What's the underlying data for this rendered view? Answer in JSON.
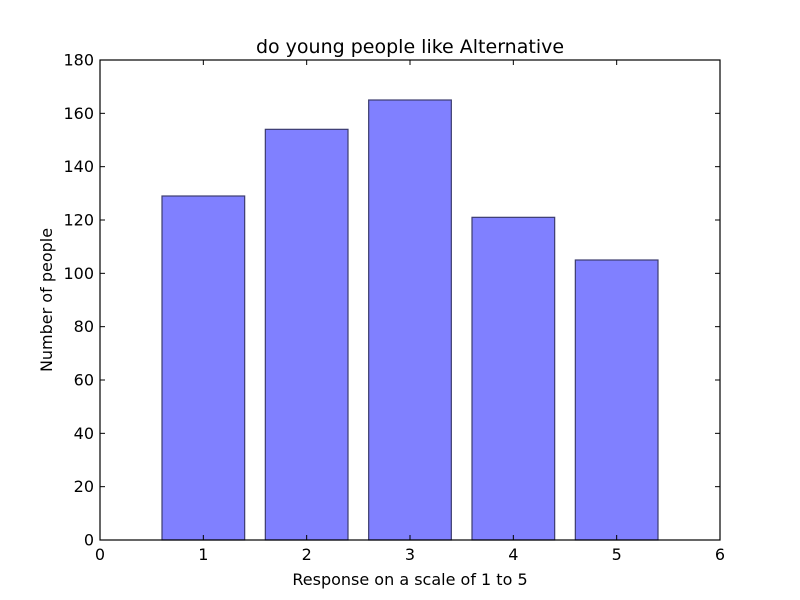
{
  "chart_data": {
    "type": "bar",
    "title": "do young people like Alternative",
    "xlabel": "Response on a scale of 1 to 5",
    "ylabel": "Number of people",
    "categories": [
      "1",
      "2",
      "3",
      "4",
      "5"
    ],
    "x": [
      1,
      2,
      3,
      4,
      5
    ],
    "values": [
      129,
      154,
      165,
      121,
      105
    ],
    "xlim": [
      0,
      6
    ],
    "ylim": [
      0,
      180
    ],
    "xticks": [
      "0",
      "1",
      "2",
      "3",
      "4",
      "5",
      "6"
    ],
    "yticks": [
      "0",
      "20",
      "40",
      "60",
      "80",
      "100",
      "120",
      "140",
      "160",
      "180"
    ],
    "bar_color": "#8080ff",
    "bar_edge_color": "#3c3c6e",
    "grid": false,
    "legend": "none"
  }
}
